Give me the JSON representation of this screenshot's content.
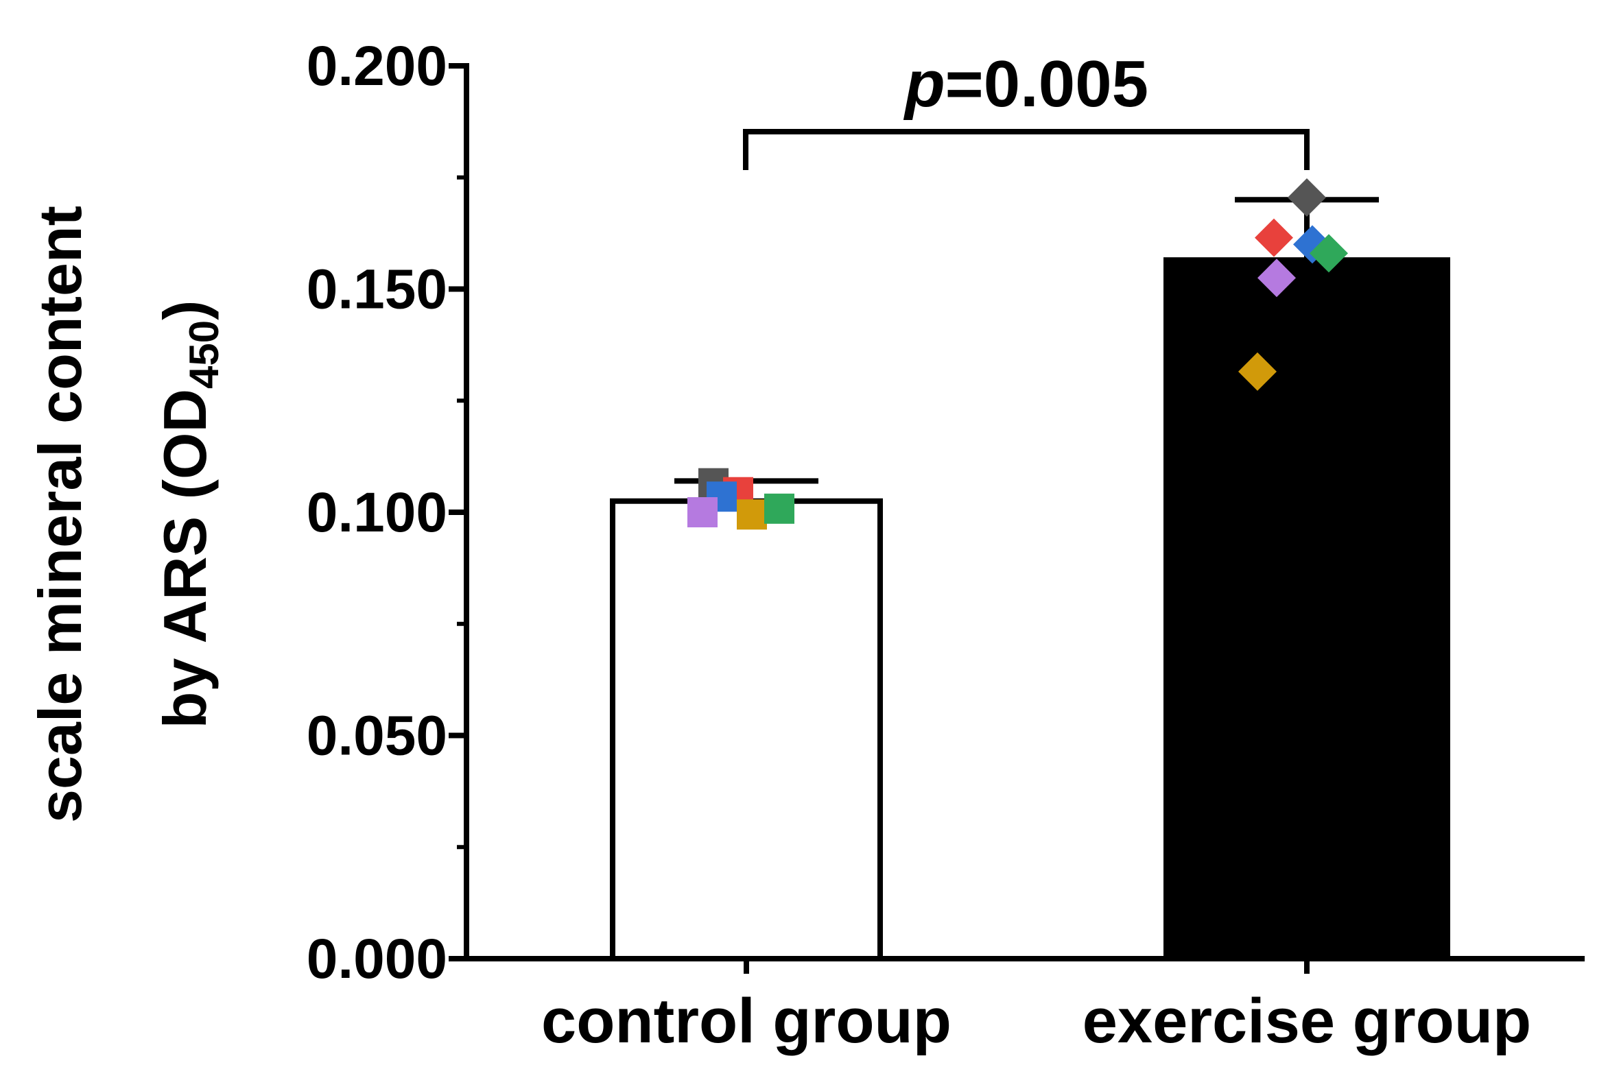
{
  "chart_data": {
    "type": "bar",
    "categories": [
      "control group",
      "exercise group"
    ],
    "values": [
      0.1025,
      0.1565
    ],
    "error_upper": [
      0.107,
      0.17
    ],
    "ylim": [
      0,
      0.2
    ],
    "yticks": [
      "0.000",
      "0.050",
      "0.100",
      "0.150",
      "0.200"
    ],
    "ylabel_line1": "scale mineral content",
    "ylabel_line2_prefix": "by ARS (OD",
    "ylabel_subscript": "450",
    "ylabel_line2_suffix": ")",
    "bar_fills": [
      "#ffffff",
      "#000000"
    ],
    "annotation": {
      "p_symbol": "p",
      "p_value": "=0.005"
    },
    "points": [
      {
        "category": "control group",
        "shape": "square",
        "color": "#555555",
        "y": 0.1065,
        "dx": -0.12
      },
      {
        "category": "control group",
        "shape": "square",
        "color": "#e8413c",
        "y": 0.1045,
        "dx": -0.03
      },
      {
        "category": "control group",
        "shape": "square",
        "color": "#2e72d2",
        "y": 0.1035,
        "dx": -0.09
      },
      {
        "category": "control group",
        "shape": "square",
        "color": "#b57ae0",
        "y": 0.1,
        "dx": -0.16
      },
      {
        "category": "control group",
        "shape": "square",
        "color": "#d19a0a",
        "y": 0.0995,
        "dx": 0.02
      },
      {
        "category": "control group",
        "shape": "square",
        "color": "#2fa85a",
        "y": 0.1008,
        "dx": 0.12
      },
      {
        "category": "exercise group",
        "shape": "diamond",
        "color": "#555555",
        "y": 0.1705,
        "dx": 0.0
      },
      {
        "category": "exercise group",
        "shape": "diamond",
        "color": "#e8413c",
        "y": 0.1615,
        "dx": -0.12
      },
      {
        "category": "exercise group",
        "shape": "diamond",
        "color": "#2e72d2",
        "y": 0.16,
        "dx": 0.02
      },
      {
        "category": "exercise group",
        "shape": "diamond",
        "color": "#2fa85a",
        "y": 0.158,
        "dx": 0.08
      },
      {
        "category": "exercise group",
        "shape": "diamond",
        "color": "#b57ae0",
        "y": 0.1525,
        "dx": -0.11
      },
      {
        "category": "exercise group",
        "shape": "diamond",
        "color": "#d19a0a",
        "y": 0.1315,
        "dx": -0.18
      }
    ]
  }
}
